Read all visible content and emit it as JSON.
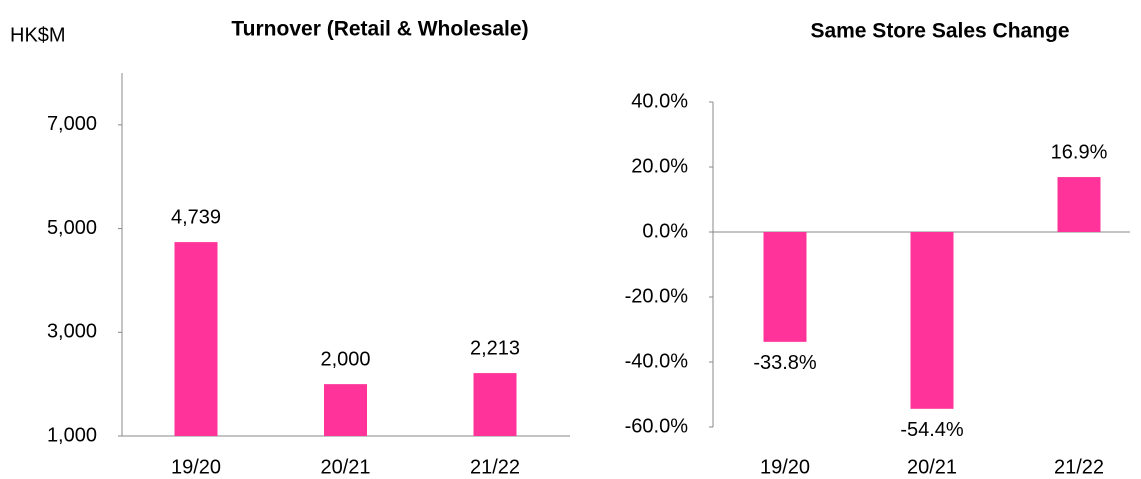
{
  "chart_data": [
    {
      "type": "bar",
      "title": "Turnover (Retail & Wholesale)",
      "y_label": "HK$M",
      "categories": [
        "19/20",
        "20/21",
        "21/22"
      ],
      "values": [
        4739,
        2000,
        2213
      ],
      "value_labels": [
        "4,739",
        "2,000",
        "2,213"
      ],
      "color": "#ff3399",
      "ylim": [
        1000,
        8000
      ],
      "yticks": [
        {
          "value": 1000,
          "label": "1,000"
        },
        {
          "value": 3000,
          "label": "3,000"
        },
        {
          "value": 5000,
          "label": "5,000"
        },
        {
          "value": 7000,
          "label": "7,000"
        }
      ],
      "grid": false
    },
    {
      "type": "bar",
      "title": "Same Store Sales Change",
      "categories": [
        "19/20",
        "20/21",
        "21/22"
      ],
      "values": [
        -33.8,
        -54.4,
        16.9
      ],
      "value_labels": [
        "-33.8%",
        "-54.4%",
        "16.9%"
      ],
      "color": "#ff3399",
      "ylim": [
        -60,
        40
      ],
      "yticks": [
        {
          "value": -60,
          "label": "-60.0%"
        },
        {
          "value": -40,
          "label": "-40.0%"
        },
        {
          "value": -20,
          "label": "-20.0%"
        },
        {
          "value": 0,
          "label": "0.0%"
        },
        {
          "value": 20,
          "label": "20.0%"
        },
        {
          "value": 40,
          "label": "40.0%"
        }
      ],
      "grid": false
    }
  ]
}
